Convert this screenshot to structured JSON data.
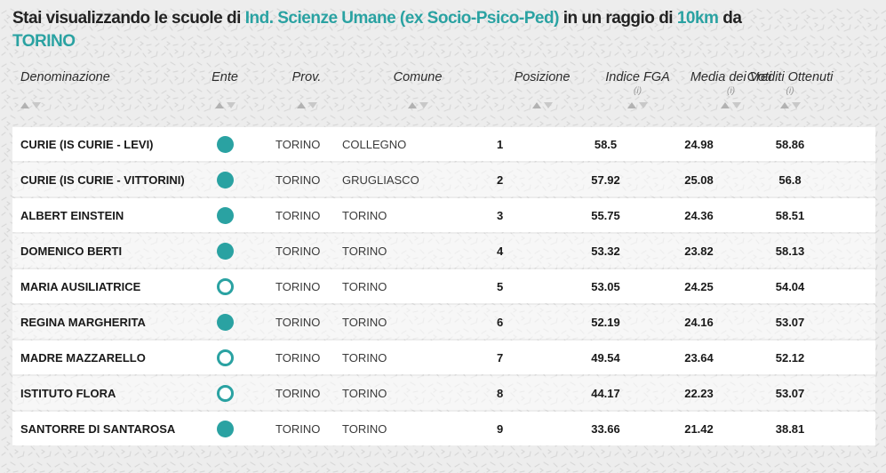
{
  "colors": {
    "accent": "#2aa2a2",
    "background": "#ededed"
  },
  "title": {
    "segments": [
      {
        "text": "Stai visualizzando le scuole di ",
        "teal": false,
        "break_before": false
      },
      {
        "text": "Ind. Scienze Umane (ex Socio-Psico-Ped)",
        "teal": true,
        "break_before": false
      },
      {
        "text": " in un raggio di ",
        "teal": false,
        "break_before": false
      },
      {
        "text": "10km",
        "teal": true,
        "break_before": false
      },
      {
        "text": " da",
        "teal": false,
        "break_before": false
      },
      {
        "text": "TORINO",
        "teal": true,
        "break_before": true
      }
    ]
  },
  "table": {
    "info_label": "(i)",
    "columns": [
      {
        "key": "denominazione",
        "label": "Denominazione",
        "info": false
      },
      {
        "key": "ente",
        "label": "Ente",
        "info": false
      },
      {
        "key": "prov",
        "label": "Prov.",
        "info": false
      },
      {
        "key": "comune",
        "label": "Comune",
        "info": false
      },
      {
        "key": "posizione",
        "label": "Posizione",
        "info": false
      },
      {
        "key": "indice_fga",
        "label": "Indice FGA",
        "info": true
      },
      {
        "key": "media_voti",
        "label": "Media dei Voti",
        "info": true
      },
      {
        "key": "crediti",
        "label": "Crediti Ottenuti",
        "info": true
      }
    ],
    "rows": [
      {
        "denominazione": "CURIE (IS CURIE - LEVI)",
        "ente": "filled",
        "prov": "TORINO",
        "comune": "COLLEGNO",
        "posizione": "1",
        "indice_fga": "58.5",
        "media_voti": "24.98",
        "crediti": "58.86"
      },
      {
        "denominazione": "CURIE (IS CURIE - VITTORINI)",
        "ente": "filled",
        "prov": "TORINO",
        "comune": "GRUGLIASCO",
        "posizione": "2",
        "indice_fga": "57.92",
        "media_voti": "25.08",
        "crediti": "56.8"
      },
      {
        "denominazione": "ALBERT EINSTEIN",
        "ente": "filled",
        "prov": "TORINO",
        "comune": "TORINO",
        "posizione": "3",
        "indice_fga": "55.75",
        "media_voti": "24.36",
        "crediti": "58.51"
      },
      {
        "denominazione": "DOMENICO BERTI",
        "ente": "filled",
        "prov": "TORINO",
        "comune": "TORINO",
        "posizione": "4",
        "indice_fga": "53.32",
        "media_voti": "23.82",
        "crediti": "58.13"
      },
      {
        "denominazione": "MARIA AUSILIATRICE",
        "ente": "hollow",
        "prov": "TORINO",
        "comune": "TORINO",
        "posizione": "5",
        "indice_fga": "53.05",
        "media_voti": "24.25",
        "crediti": "54.04"
      },
      {
        "denominazione": "REGINA MARGHERITA",
        "ente": "filled",
        "prov": "TORINO",
        "comune": "TORINO",
        "posizione": "6",
        "indice_fga": "52.19",
        "media_voti": "24.16",
        "crediti": "53.07"
      },
      {
        "denominazione": "MADRE MAZZARELLO",
        "ente": "hollow",
        "prov": "TORINO",
        "comune": "TORINO",
        "posizione": "7",
        "indice_fga": "49.54",
        "media_voti": "23.64",
        "crediti": "52.12"
      },
      {
        "denominazione": "ISTITUTO FLORA",
        "ente": "hollow",
        "prov": "TORINO",
        "comune": "TORINO",
        "posizione": "8",
        "indice_fga": "44.17",
        "media_voti": "22.23",
        "crediti": "53.07"
      },
      {
        "denominazione": "SANTORRE DI SANTAROSA",
        "ente": "filled",
        "prov": "TORINO",
        "comune": "TORINO",
        "posizione": "9",
        "indice_fga": "33.66",
        "media_voti": "21.42",
        "crediti": "38.81"
      }
    ]
  }
}
